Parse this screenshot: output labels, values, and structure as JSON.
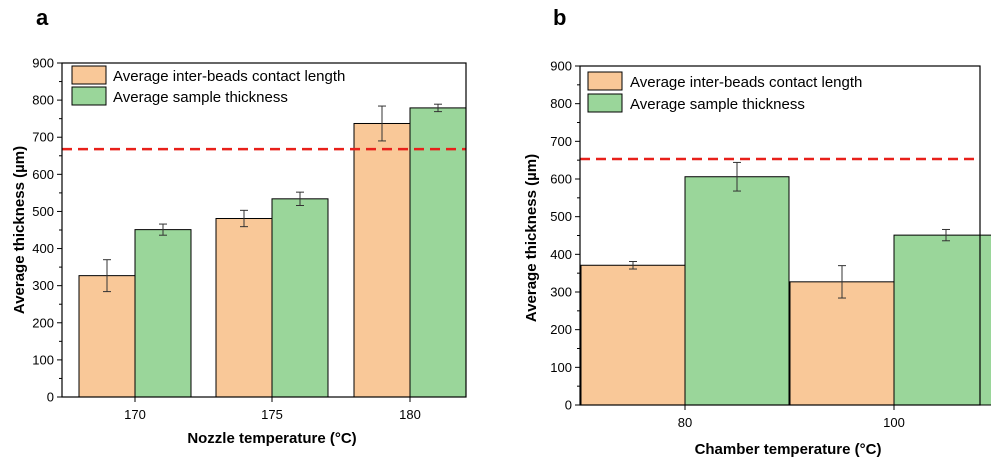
{
  "colors": {
    "series1": "#f9c898",
    "series2": "#9ad69a",
    "reference_line": "#e8201a",
    "bar_outline": "#000000"
  },
  "chart_data": [
    {
      "panel": "a",
      "type": "bar",
      "xlabel": "Nozzle temperature (°C)",
      "ylabel": "Average thickness (µm)",
      "ylim": [
        0,
        900
      ],
      "yticks": [
        0,
        100,
        200,
        300,
        400,
        500,
        600,
        700,
        800,
        900
      ],
      "categories": [
        "170",
        "175",
        "180"
      ],
      "series": [
        {
          "name": "Average inter-beads contact length",
          "values": [
            327,
            481,
            737
          ],
          "errors": [
            43,
            22,
            47
          ]
        },
        {
          "name": "Average sample thickness",
          "values": [
            451,
            534,
            779
          ],
          "errors": [
            15,
            18,
            10
          ]
        }
      ],
      "reference_line": 668,
      "legend": "top-left",
      "grid": false
    },
    {
      "panel": "b",
      "type": "bar",
      "xlabel": "Chamber temperature (°C)",
      "ylabel": "Average thickness (µm)",
      "ylim": [
        0,
        900
      ],
      "yticks": [
        0,
        100,
        200,
        300,
        400,
        500,
        600,
        700,
        800,
        900
      ],
      "categories": [
        "80",
        "100"
      ],
      "series": [
        {
          "name": "Average inter-beads contact length",
          "values": [
            371,
            327
          ],
          "errors": [
            10,
            43
          ]
        },
        {
          "name": "Average sample thickness",
          "values": [
            606,
            451
          ],
          "errors": [
            38,
            15
          ]
        }
      ],
      "reference_line": 653,
      "legend": "top-left",
      "grid": false
    }
  ]
}
